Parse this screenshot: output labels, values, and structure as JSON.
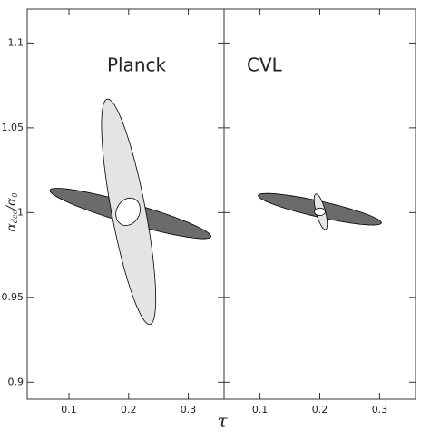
{
  "chart_data": [
    {
      "type": "ellipse",
      "title": "Planck",
      "xlabel": "τ",
      "ylabel": [
        "α",
        "dec",
        "/α",
        "0"
      ],
      "xlim": [
        0.03,
        0.36
      ],
      "xticks": [
        0.1,
        0.2,
        0.3
      ],
      "ylim": [
        0.89,
        1.12
      ],
      "yticks": [
        0.9,
        0.95,
        1,
        1.05,
        1.1
      ],
      "ellipses": [
        {
          "color": "#6b6b6b",
          "center": [
            0.203,
            0.9995
          ],
          "axis1": [
            0.135,
            -0.0135
          ],
          "axis2": [
            0,
            0.0062
          ]
        },
        {
          "color": "#e4e4e4",
          "center": [
            0.2,
            1.0005
          ],
          "axis1": [
            -0.035,
            0.0665
          ],
          "axis2": [
            0.029,
            0
          ]
        },
        {
          "color": "#ffffff",
          "center": [
            0.199,
            1.0005
          ],
          "axis1": [
            0.02,
            0.003
          ],
          "axis2": [
            -0.004,
            0.0075
          ]
        }
      ]
    },
    {
      "type": "ellipse",
      "title": "CVL",
      "xlim": [
        0.04,
        0.36
      ],
      "xticks": [
        0.1,
        0.2,
        0.3
      ],
      "ylim": [
        0.89,
        1.12
      ],
      "ellipses": [
        {
          "color": "#6b6b6b",
          "center": [
            0.2,
            1.002
          ],
          "axis1": [
            0.103,
            -0.008
          ],
          "axis2": [
            0,
            0.0048
          ]
        },
        {
          "color": "#e4e4e4",
          "center": [
            0.2015,
            1.0005
          ],
          "axis1": [
            -0.0075,
            0.0105
          ],
          "axis2": [
            0.008,
            0
          ]
        },
        {
          "color": "#ffffff",
          "center": [
            0.2,
            1.0005
          ],
          "axis1": [
            0.009,
            0
          ],
          "axis2": [
            0,
            0.0022
          ]
        }
      ]
    }
  ]
}
